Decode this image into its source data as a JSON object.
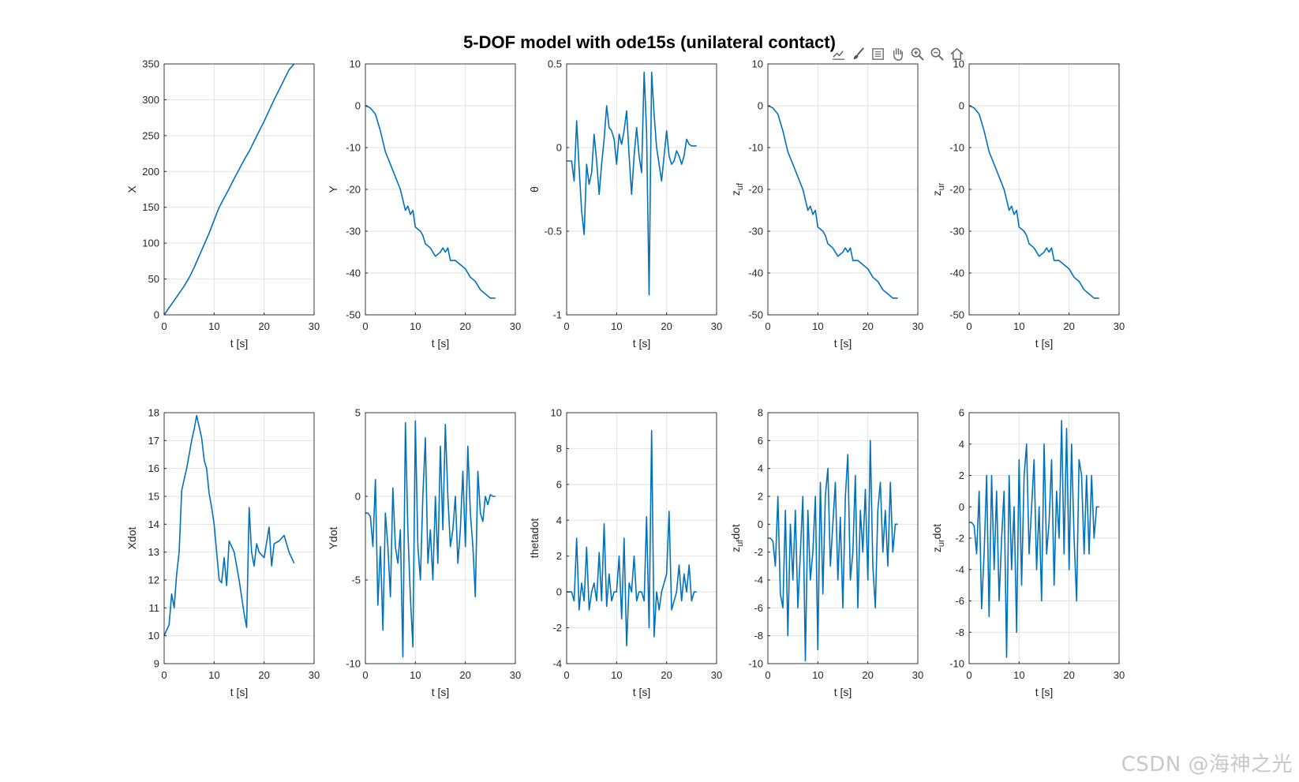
{
  "figure_title": "5-DOF model with ode15s (unilateral contact)",
  "watermark": "CSDN @海神之光",
  "toolbar": [
    "data-tips-icon",
    "brush-icon",
    "legend-icon",
    "pan-hand-icon",
    "zoom-in-icon",
    "zoom-out-icon",
    "home-icon"
  ],
  "colors": {
    "line": "#0072BD",
    "grid": "#e2e2e2",
    "axes": "#262626"
  },
  "chart_data": [
    {
      "type": "line",
      "ylabel": "X",
      "ylabel_sub": "",
      "xlabel": "t [s]",
      "xlim": [
        0,
        30
      ],
      "ylim": [
        0,
        350
      ],
      "yticks": [
        0,
        50,
        100,
        150,
        200,
        250,
        300,
        350
      ],
      "xticks": [
        0,
        10,
        20,
        30
      ],
      "x": [
        0,
        1,
        2,
        3,
        4,
        5,
        6,
        7,
        8,
        9,
        10,
        11,
        12,
        13,
        14,
        15,
        16,
        17,
        18,
        19,
        20,
        21,
        22,
        23,
        24,
        25,
        26
      ],
      "y": [
        0,
        10,
        20,
        30,
        40,
        52,
        66,
        82,
        98,
        114,
        132,
        150,
        163,
        176,
        190,
        203,
        216,
        228,
        242,
        256,
        270,
        285,
        300,
        314,
        328,
        342,
        350
      ]
    },
    {
      "type": "line",
      "ylabel": "Y",
      "ylabel_sub": "",
      "xlabel": "t [s]",
      "xlim": [
        0,
        30
      ],
      "ylim": [
        -50,
        10
      ],
      "yticks": [
        -50,
        -40,
        -30,
        -20,
        -10,
        0,
        10
      ],
      "xticks": [
        0,
        10,
        20,
        30
      ],
      "x": [
        0,
        1,
        2,
        3,
        4,
        5,
        6,
        7,
        8,
        8.5,
        9,
        9.5,
        10,
        11,
        11.5,
        12,
        13,
        14,
        15,
        15.5,
        16,
        16.5,
        17,
        18,
        19,
        20,
        21,
        22,
        23,
        24,
        25,
        26
      ],
      "y": [
        0,
        -0.5,
        -2,
        -6,
        -11,
        -14,
        -17,
        -20,
        -25,
        -24,
        -26,
        -25,
        -29,
        -30,
        -31,
        -33,
        -34,
        -36,
        -35,
        -34,
        -35,
        -34,
        -37,
        -37,
        -38,
        -39,
        -41,
        -42,
        -44,
        -45,
        -46,
        -46
      ]
    },
    {
      "type": "line",
      "ylabel": "θ",
      "ylabel_sub": "",
      "xlabel": "t [s]",
      "xlim": [
        0,
        30
      ],
      "ylim": [
        -1,
        0.5
      ],
      "yticks": [
        -1,
        -0.5,
        0,
        0.5
      ],
      "xticks": [
        0,
        10,
        20,
        30
      ],
      "x": [
        0,
        0.5,
        1,
        1.5,
        2,
        2.5,
        3,
        3.5,
        4,
        4.5,
        5,
        5.5,
        6,
        6.5,
        7,
        7.5,
        8,
        8.5,
        9,
        9.5,
        10,
        10.5,
        11,
        11.5,
        12,
        12.5,
        13,
        13.5,
        14,
        14.5,
        15,
        15.5,
        16,
        16.5,
        17,
        17.5,
        18,
        18.5,
        19,
        19.5,
        20,
        20.5,
        21,
        21.5,
        22,
        22.5,
        23,
        23.5,
        24,
        24.5,
        25,
        25.5,
        26
      ],
      "y": [
        -0.08,
        -0.08,
        -0.08,
        -0.2,
        0.16,
        -0.12,
        -0.38,
        -0.52,
        -0.1,
        -0.22,
        -0.15,
        0.08,
        -0.08,
        -0.28,
        -0.1,
        0.05,
        0.25,
        0.12,
        0.1,
        0.05,
        -0.1,
        0.08,
        0.02,
        0.1,
        0.22,
        -0.05,
        -0.28,
        -0.05,
        0.12,
        -0.05,
        -0.15,
        0.45,
        0.1,
        -0.88,
        0.45,
        0.2,
        0.0,
        -0.1,
        -0.2,
        -0.05,
        0.1,
        -0.05,
        -0.1,
        -0.08,
        -0.02,
        -0.05,
        -0.1,
        -0.05,
        0.05,
        0.02,
        0.01,
        0.01,
        0.01
      ]
    },
    {
      "type": "line",
      "ylabel": "z",
      "ylabel_sub": "uf",
      "xlabel": "t [s]",
      "xlim": [
        0,
        30
      ],
      "ylim": [
        -50,
        10
      ],
      "yticks": [
        -50,
        -40,
        -30,
        -20,
        -10,
        0,
        10
      ],
      "xticks": [
        0,
        10,
        20,
        30
      ],
      "x": [
        0,
        1,
        2,
        3,
        4,
        5,
        6,
        7,
        8,
        8.5,
        9,
        9.5,
        10,
        11,
        11.5,
        12,
        13,
        14,
        15,
        15.5,
        16,
        16.5,
        17,
        18,
        19,
        20,
        21,
        22,
        23,
        24,
        25,
        26
      ],
      "y": [
        0,
        -0.5,
        -2,
        -6,
        -11,
        -14,
        -17,
        -20,
        -25,
        -24,
        -26,
        -25,
        -29,
        -30,
        -31,
        -33,
        -34,
        -36,
        -35,
        -34,
        -35,
        -34,
        -37,
        -37,
        -38,
        -39,
        -41,
        -42,
        -44,
        -45,
        -46,
        -46
      ]
    },
    {
      "type": "line",
      "ylabel": "z",
      "ylabel_sub": "ur",
      "xlabel": "t [s]",
      "xlim": [
        0,
        30
      ],
      "ylim": [
        -50,
        10
      ],
      "yticks": [
        -50,
        -40,
        -30,
        -20,
        -10,
        0,
        10
      ],
      "xticks": [
        0,
        10,
        20,
        30
      ],
      "x": [
        0,
        1,
        2,
        3,
        4,
        5,
        6,
        7,
        8,
        8.5,
        9,
        9.5,
        10,
        11,
        11.5,
        12,
        13,
        14,
        15,
        15.5,
        16,
        16.5,
        17,
        18,
        19,
        20,
        21,
        22,
        23,
        24,
        25,
        26
      ],
      "y": [
        0,
        -0.5,
        -2,
        -6,
        -11,
        -14,
        -17,
        -20,
        -25,
        -24,
        -26,
        -25,
        -29,
        -30,
        -31,
        -33,
        -34,
        -36,
        -35,
        -34,
        -35,
        -34,
        -37,
        -37,
        -38,
        -39,
        -41,
        -42,
        -44,
        -45,
        -46,
        -46
      ]
    },
    {
      "type": "line",
      "ylabel": "Xdot",
      "ylabel_sub": "",
      "xlabel": "t [s]",
      "xlim": [
        0,
        30
      ],
      "ylim": [
        9,
        18
      ],
      "yticks": [
        9,
        10,
        11,
        12,
        13,
        14,
        15,
        16,
        17,
        18
      ],
      "xticks": [
        0,
        10,
        20,
        30
      ],
      "x": [
        0,
        0.5,
        1,
        1.5,
        2,
        2.5,
        3,
        3.5,
        4,
        4.5,
        5,
        5.5,
        6,
        6.5,
        7,
        7.5,
        8,
        8.5,
        9,
        9.5,
        10,
        11,
        11.5,
        12,
        12.5,
        13,
        14,
        15,
        16,
        16.5,
        17,
        17.5,
        18,
        18.5,
        19,
        20,
        21,
        21.5,
        22,
        23,
        24,
        25,
        26
      ],
      "y": [
        10,
        10.2,
        10.4,
        11.5,
        11.0,
        12.2,
        13.0,
        15.2,
        15.6,
        16.0,
        16.5,
        17.0,
        17.4,
        17.9,
        17.5,
        17.1,
        16.3,
        16.0,
        15.1,
        14.6,
        14.0,
        12.0,
        11.9,
        12.8,
        11.8,
        13.4,
        13.0,
        12.0,
        10.8,
        10.3,
        14.6,
        13.0,
        12.5,
        13.3,
        13.0,
        12.8,
        13.9,
        12.5,
        13.3,
        13.4,
        13.6,
        13.0,
        12.6
      ]
    },
    {
      "type": "line",
      "ylabel": "Ydot",
      "ylabel_sub": "",
      "xlabel": "t [s]",
      "xlim": [
        0,
        30
      ],
      "ylim": [
        -10,
        5
      ],
      "yticks": [
        -10,
        -5,
        0,
        5
      ],
      "xticks": [
        0,
        10,
        20,
        30
      ],
      "x": [
        0,
        0.5,
        1,
        1.5,
        2,
        2.5,
        3,
        3.5,
        4,
        4.5,
        5,
        5.5,
        6,
        6.5,
        7,
        7.5,
        8,
        8.5,
        9,
        9.5,
        10,
        10.5,
        11,
        11.5,
        12,
        12.5,
        13,
        13.5,
        14,
        14.5,
        15,
        15.5,
        16,
        16.5,
        17,
        17.5,
        18,
        18.5,
        19,
        19.5,
        20,
        20.5,
        21,
        21.5,
        22,
        22.5,
        23,
        23.5,
        24,
        24.5,
        25,
        25.5,
        26
      ],
      "y": [
        -1,
        -1,
        -1.2,
        -3,
        1,
        -6.5,
        -3,
        -8,
        -1,
        -3,
        -6,
        0.5,
        -3,
        -4,
        -2,
        -9.6,
        4.4,
        -2,
        -6,
        -9,
        4.5,
        -3,
        -5,
        0,
        3.5,
        -4,
        -2,
        -5,
        0,
        -4,
        3,
        -2,
        4.3,
        0,
        -3,
        -2,
        0,
        -4,
        -2,
        1.5,
        -3,
        3,
        -1,
        -3,
        -6,
        1.5,
        -1,
        -1.5,
        0,
        -0.5,
        0.1,
        0,
        0
      ]
    },
    {
      "type": "line",
      "ylabel": "thetadot",
      "ylabel_sub": "",
      "xlabel": "t [s]",
      "xlim": [
        0,
        30
      ],
      "ylim": [
        -4,
        10
      ],
      "yticks": [
        -4,
        -2,
        0,
        2,
        4,
        6,
        8,
        10
      ],
      "xticks": [
        0,
        10,
        20,
        30
      ],
      "x": [
        0,
        0.5,
        1,
        1.5,
        2,
        2.5,
        3,
        3.5,
        4,
        4.5,
        5,
        5.5,
        6,
        6.5,
        7,
        7.5,
        8,
        8.5,
        9,
        9.5,
        10,
        10.5,
        11,
        11.5,
        12,
        12.5,
        13,
        13.5,
        14,
        14.5,
        15,
        15.5,
        16,
        16.5,
        17,
        17.5,
        18,
        18.5,
        19,
        19.5,
        20,
        20.5,
        21,
        21.5,
        22,
        22.5,
        23,
        23.5,
        24,
        24.5,
        25,
        25.5,
        26
      ],
      "y": [
        0,
        0,
        0,
        -0.5,
        3,
        -1,
        0.5,
        -0.5,
        2.5,
        -1,
        0,
        0.5,
        -0.5,
        2.2,
        -0.5,
        3.8,
        -0.8,
        1,
        -0.5,
        0,
        0,
        2,
        -1.5,
        3,
        -3,
        0.5,
        0,
        2,
        -0.5,
        0,
        0,
        -0.5,
        4.2,
        -2,
        9,
        -2.5,
        0,
        -1,
        0,
        0.5,
        1,
        4.5,
        -1,
        -0.5,
        0,
        1.5,
        -0.5,
        1,
        0,
        1.5,
        -0.5,
        0,
        0
      ]
    },
    {
      "type": "line",
      "ylabel": "z",
      "ylabel_sub": "uf",
      "ylabel_suffix": "dot",
      "xlabel": "t [s]",
      "xlim": [
        0,
        30
      ],
      "ylim": [
        -10,
        8
      ],
      "yticks": [
        -10,
        -8,
        -6,
        -4,
        -2,
        0,
        2,
        4,
        6,
        8
      ],
      "xticks": [
        0,
        10,
        20,
        30
      ],
      "x": [
        0,
        0.5,
        1,
        1.5,
        2,
        2.5,
        3,
        3.5,
        4,
        4.5,
        5,
        5.5,
        6,
        6.5,
        7,
        7.5,
        8,
        8.5,
        9,
        9.5,
        10,
        10.5,
        11,
        11.5,
        12,
        12.5,
        13,
        13.5,
        14,
        14.5,
        15,
        15.5,
        16,
        16.5,
        17,
        17.5,
        18,
        18.5,
        19,
        19.5,
        20,
        20.5,
        21,
        21.5,
        22,
        22.5,
        23,
        23.5,
        24,
        24.5,
        25,
        25.5,
        26
      ],
      "y": [
        -1,
        -1,
        -1.2,
        -3,
        2,
        -5,
        -6,
        1,
        -8,
        0,
        -4,
        1,
        -6,
        -2,
        2,
        -9.8,
        1,
        -4,
        -2,
        2,
        -9,
        3,
        -5,
        2,
        4,
        -3,
        0,
        3,
        -4,
        0.5,
        -6,
        2,
        5,
        -4,
        -2,
        3.5,
        -6,
        1,
        -2,
        2.5,
        -4,
        6,
        -3,
        -6,
        1,
        3,
        -2,
        1,
        -3,
        3,
        -2,
        0,
        0
      ]
    },
    {
      "type": "line",
      "ylabel": "z",
      "ylabel_sub": "ur",
      "ylabel_suffix": "dot",
      "xlabel": "t [s]",
      "xlim": [
        0,
        30
      ],
      "ylim": [
        -10,
        6
      ],
      "yticks": [
        -10,
        -8,
        -6,
        -4,
        -2,
        0,
        2,
        4,
        6
      ],
      "xticks": [
        0,
        10,
        20,
        30
      ],
      "x": [
        0,
        0.5,
        1,
        1.5,
        2,
        2.5,
        3,
        3.5,
        4,
        4.5,
        5,
        5.5,
        6,
        6.5,
        7,
        7.5,
        8,
        8.5,
        9,
        9.5,
        10,
        10.5,
        11,
        11.5,
        12,
        12.5,
        13,
        13.5,
        14,
        14.5,
        15,
        15.5,
        16,
        16.5,
        17,
        17.5,
        18,
        18.5,
        19,
        19.5,
        20,
        20.5,
        21,
        21.5,
        22,
        22.5,
        23,
        23.5,
        24,
        24.5,
        25,
        25.5,
        26
      ],
      "y": [
        -1,
        -1,
        -1.2,
        -3,
        1,
        -6.5,
        -3,
        2,
        -7,
        2,
        -4,
        1,
        -6,
        -2,
        1,
        -9.6,
        2,
        -4,
        0,
        -8,
        3,
        -5,
        2,
        4,
        -3,
        0,
        3,
        -4,
        0,
        -6,
        4,
        -3,
        -1,
        3,
        -5,
        1,
        -2,
        5.5,
        -3,
        5,
        -4,
        4,
        -2,
        -6,
        3,
        2,
        -3,
        2,
        -3,
        2,
        -2,
        0,
        0
      ]
    }
  ]
}
